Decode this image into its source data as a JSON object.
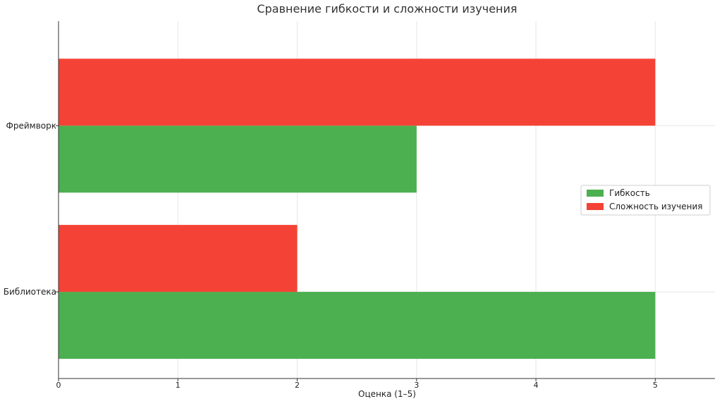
{
  "chart_data": {
    "type": "bar",
    "orientation": "horizontal",
    "title": "Сравнение гибкости и сложности изучения",
    "xlabel": "Оценка (1–5)",
    "ylabel": "",
    "xlim": [
      0,
      5.5
    ],
    "xticks": [
      "0",
      "1",
      "2",
      "3",
      "4",
      "5"
    ],
    "grid": true,
    "legend_position": "center-right",
    "categories": [
      "Библиотека",
      "Фреймворк"
    ],
    "series": [
      {
        "name": "Гибкость",
        "color": "#4caf50",
        "values": [
          5,
          3
        ]
      },
      {
        "name": "Сложность изучения",
        "color": "#f44336",
        "values": [
          2,
          5
        ]
      }
    ]
  }
}
